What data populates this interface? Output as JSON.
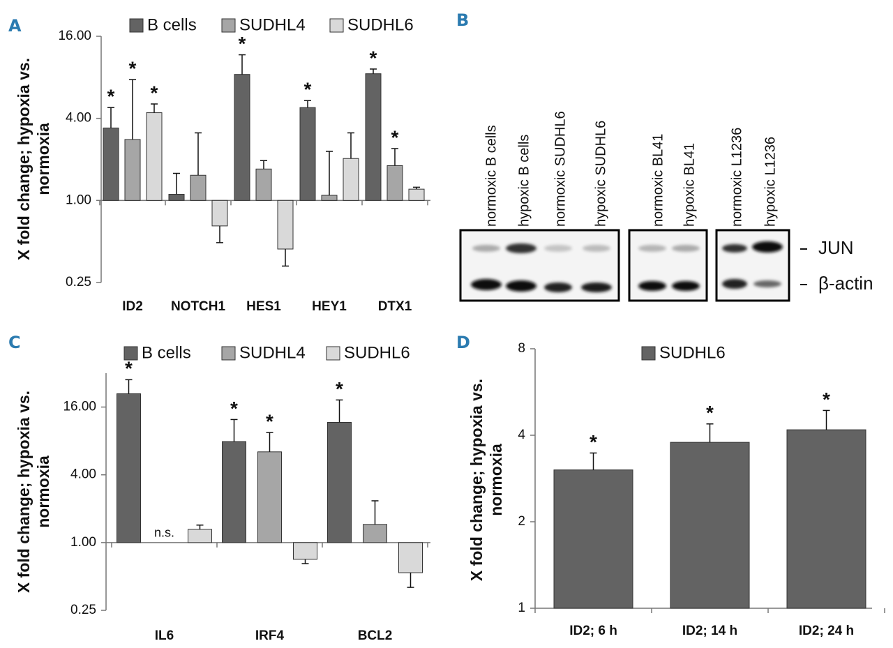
{
  "chart_data": [
    {
      "type": "bar",
      "panel_label": "A",
      "log": true,
      "y_label": "X fold change; hypoxia vs. normoxia",
      "categories": [
        "ID2",
        "NOTCH1",
        "HES1",
        "HEY1",
        "DTX1"
      ],
      "ylim": [
        0.25,
        16
      ],
      "yticks": [
        {
          "value": 0.25,
          "label": "0.25"
        },
        {
          "value": 1,
          "label": "1.00"
        },
        {
          "value": 4,
          "label": "4.00"
        },
        {
          "value": 16,
          "label": "16.00"
        }
      ],
      "series": [
        {
          "name": "B cells",
          "color": "#636363",
          "values": [
            3.4,
            1.11,
            8.4,
            4.8,
            8.5
          ],
          "errors": [
            1.4,
            0.47,
            3.3,
            0.6,
            0.7
          ],
          "significance": [
            "*",
            null,
            "*",
            "*",
            "*"
          ]
        },
        {
          "name": "SUDHL4",
          "color": "#a6a6a6",
          "values": [
            2.8,
            1.53,
            1.7,
            1.09,
            1.8
          ],
          "errors": [
            4.9,
            1.6,
            0.26,
            1.2,
            0.6
          ],
          "significance": [
            "*",
            null,
            null,
            null,
            "*"
          ]
        },
        {
          "name": "SUDHL6",
          "color": "#d9d9d9",
          "values": [
            4.4,
            0.65,
            0.44,
            2.03,
            1.21
          ],
          "errors": [
            0.7,
            0.16,
            0.11,
            1.1,
            0.04
          ],
          "significance": [
            "*",
            null,
            null,
            null,
            null
          ]
        }
      ]
    },
    {
      "type": "bar",
      "panel_label": "C",
      "log": true,
      "y_label": "X fold change; hypoxia vs. normoxia",
      "categories": [
        "IL6",
        "IRF4",
        "BCL2"
      ],
      "ylim": [
        0.25,
        32
      ],
      "yticks": [
        {
          "value": 0.25,
          "label": "0.25"
        },
        {
          "value": 1,
          "label": "1.00"
        },
        {
          "value": 4,
          "label": "4.00"
        },
        {
          "value": 16,
          "label": "16.00"
        }
      ],
      "series": [
        {
          "name": "B cells",
          "color": "#636363",
          "values": [
            21,
            7.9,
            11.7
          ],
          "errors": [
            7,
            4.5,
            6.8
          ],
          "significance": [
            "*",
            "*",
            "*"
          ]
        },
        {
          "name": "SUDHL4",
          "color": "#a6a6a6",
          "values": [
            null,
            6.4,
            1.45
          ],
          "errors": [
            null,
            3.1,
            0.9
          ],
          "significance": [
            "n.s.",
            "*",
            null
          ]
        },
        {
          "name": "SUDHL6",
          "color": "#d9d9d9",
          "values": [
            1.31,
            0.71,
            0.54
          ],
          "errors": [
            0.12,
            0.06,
            0.14
          ],
          "significance": [
            null,
            null,
            null
          ]
        }
      ]
    },
    {
      "type": "bar",
      "panel_label": "D",
      "log": true,
      "y_label": "X fold change; hypoxia vs. normoxia",
      "categories": [
        "ID2; 6 h",
        "ID2; 14 h",
        "ID2; 24 h"
      ],
      "ylim": [
        1,
        8
      ],
      "yticks": [
        1,
        2,
        4,
        8
      ],
      "series": [
        {
          "name": "SUDHL6",
          "color": "#636363",
          "values": [
            3.03,
            3.78,
            4.18
          ],
          "errors": [
            0.44,
            0.6,
            0.7
          ],
          "significance": [
            "*",
            "*",
            "*"
          ]
        }
      ]
    }
  ],
  "blot": {
    "panel_label": "B",
    "lanes": [
      "normoxic B cells",
      "hypoxic B cells",
      "normoxic SUDHL6",
      "hypoxic SUDHL6",
      "normoxic BL41",
      "hypoxic BL41",
      "normoxic L1236",
      "hypoxic L1236"
    ],
    "bands": [
      "JUN",
      "β-actin"
    ]
  }
}
